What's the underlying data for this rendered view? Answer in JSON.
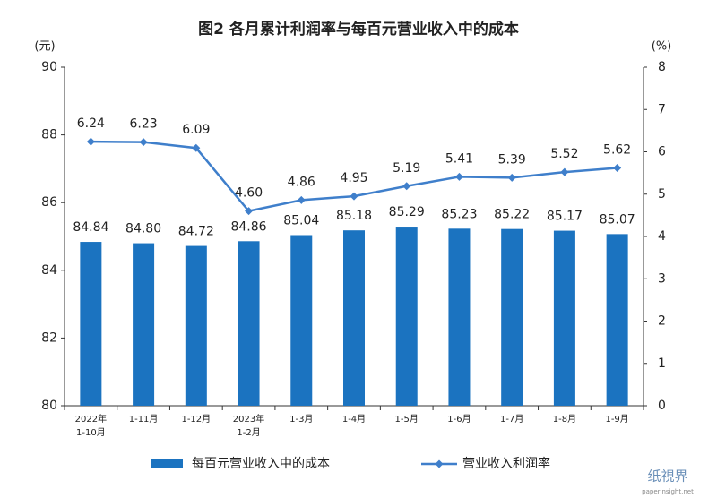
{
  "chart_data": {
    "type": "bar_line",
    "title": "图2 各月累计利润率与每百元营业收入中的成本",
    "y_label": "(元)",
    "y2_label": "(%)",
    "categories": [
      "2022年\n1-10月",
      "1-11月",
      "1-12月",
      "2023年\n1-2月",
      "1-3月",
      "1-4月",
      "1-5月",
      "1-6月",
      "1-7月",
      "1-8月",
      "1-9月"
    ],
    "series": [
      {
        "name": "每百元营业收入中的成本",
        "type": "bar",
        "color": "#1b73c0",
        "values": [
          84.84,
          84.8,
          84.72,
          84.86,
          85.04,
          85.18,
          85.29,
          85.23,
          85.22,
          85.17,
          85.07
        ],
        "value_labels": [
          "84.84",
          "84.80",
          "84.72",
          "84.86",
          "85.04",
          "85.18",
          "85.29",
          "85.23",
          "85.22",
          "85.17",
          "85.07"
        ]
      },
      {
        "name": "营业收入利润率",
        "type": "line",
        "axis": "y2",
        "color": "#3f7fcb",
        "values": [
          6.24,
          6.23,
          6.09,
          4.6,
          4.86,
          4.95,
          5.19,
          5.41,
          5.39,
          5.52,
          5.62
        ],
        "value_labels": [
          "6.24",
          "6.23",
          "6.09",
          "4.60",
          "4.86",
          "4.95",
          "5.19",
          "5.41",
          "5.39",
          "5.52",
          "5.62"
        ]
      }
    ],
    "ylim": [
      80,
      90
    ],
    "yticks": [
      80,
      82,
      84,
      86,
      88,
      90
    ],
    "y2lim": [
      0,
      8
    ],
    "y2ticks": [
      0,
      1,
      2,
      3,
      4,
      5,
      6,
      7,
      8
    ],
    "grid": false,
    "legend": "bottom",
    "watermark": {
      "text": "纸視界",
      "url": "paperinsight.net"
    }
  }
}
